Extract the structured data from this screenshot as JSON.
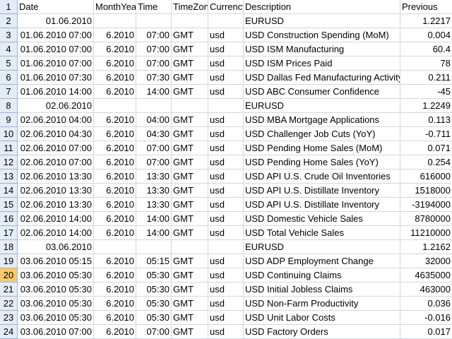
{
  "columns": [
    "Date",
    "MonthYear",
    "Time",
    "TimeZone",
    "Currency",
    "Description",
    "Previous"
  ],
  "selected_row": 20,
  "rows": [
    {
      "n": "2",
      "date": "01.06.2010",
      "my": "",
      "time": "",
      "tz": "",
      "cur": "",
      "desc": "EURUSD",
      "prev": "1.2217"
    },
    {
      "n": "3",
      "date": "01.06.2010 07:00",
      "my": "6.2010",
      "time": "07:00",
      "tz": "GMT",
      "cur": "usd",
      "desc": "USD Construction Spending (MoM)",
      "prev": "0.004"
    },
    {
      "n": "4",
      "date": "01.06.2010 07:00",
      "my": "6.2010",
      "time": "07:00",
      "tz": "GMT",
      "cur": "usd",
      "desc": "USD ISM Manufacturing",
      "prev": "60.4"
    },
    {
      "n": "5",
      "date": "01.06.2010 07:00",
      "my": "6.2010",
      "time": "07:00",
      "tz": "GMT",
      "cur": "usd",
      "desc": "USD ISM Prices Paid",
      "prev": "78"
    },
    {
      "n": "6",
      "date": "01.06.2010 07:30",
      "my": "6.2010",
      "time": "07:30",
      "tz": "GMT",
      "cur": "usd",
      "desc": "USD Dallas Fed Manufacturing Activity",
      "prev": "0.211"
    },
    {
      "n": "7",
      "date": "01.06.2010 14:00",
      "my": "6.2010",
      "time": "14:00",
      "tz": "GMT",
      "cur": "usd",
      "desc": "USD ABC Consumer Confidence",
      "prev": "-45"
    },
    {
      "n": "8",
      "date": "02.06.2010",
      "my": "",
      "time": "",
      "tz": "",
      "cur": "",
      "desc": "EURUSD",
      "prev": "1.2249"
    },
    {
      "n": "9",
      "date": "02.06.2010 04:00",
      "my": "6.2010",
      "time": "04:00",
      "tz": "GMT",
      "cur": "usd",
      "desc": "USD MBA Mortgage Applications",
      "prev": "0.113"
    },
    {
      "n": "10",
      "date": "02.06.2010 04:30",
      "my": "6.2010",
      "time": "04:30",
      "tz": "GMT",
      "cur": "usd",
      "desc": "USD Challenger Job Cuts (YoY)",
      "prev": "-0.711"
    },
    {
      "n": "11",
      "date": "02.06.2010 07:00",
      "my": "6.2010",
      "time": "07:00",
      "tz": "GMT",
      "cur": "usd",
      "desc": "USD Pending Home Sales (MoM)",
      "prev": "0.071"
    },
    {
      "n": "12",
      "date": "02.06.2010 07:00",
      "my": "6.2010",
      "time": "07:00",
      "tz": "GMT",
      "cur": "usd",
      "desc": "USD Pending Home Sales (YoY)",
      "prev": "0.254"
    },
    {
      "n": "13",
      "date": "02.06.2010 13:30",
      "my": "6.2010",
      "time": "13:30",
      "tz": "GMT",
      "cur": "usd",
      "desc": "USD API U.S. Crude Oil Inventories",
      "prev": "616000"
    },
    {
      "n": "14",
      "date": "02.06.2010 13:30",
      "my": "6.2010",
      "time": "13:30",
      "tz": "GMT",
      "cur": "usd",
      "desc": "USD API U.S. Distillate Inventory",
      "prev": "1518000"
    },
    {
      "n": "15",
      "date": "02.06.2010 13:30",
      "my": "6.2010",
      "time": "13:30",
      "tz": "GMT",
      "cur": "usd",
      "desc": "USD API U.S. Distillate Inventory",
      "prev": "-3194000"
    },
    {
      "n": "16",
      "date": "02.06.2010 14:00",
      "my": "6.2010",
      "time": "14:00",
      "tz": "GMT",
      "cur": "usd",
      "desc": "USD Domestic Vehicle Sales",
      "prev": "8780000"
    },
    {
      "n": "17",
      "date": "02.06.2010 14:00",
      "my": "6.2010",
      "time": "14:00",
      "tz": "GMT",
      "cur": "usd",
      "desc": "USD Total Vehicle Sales",
      "prev": "11210000"
    },
    {
      "n": "18",
      "date": "03.06.2010",
      "my": "",
      "time": "",
      "tz": "",
      "cur": "",
      "desc": "EURUSD",
      "prev": "1.2162"
    },
    {
      "n": "19",
      "date": "03.06.2010 05:15",
      "my": "6.2010",
      "time": "05:15",
      "tz": "GMT",
      "cur": "usd",
      "desc": "USD ADP Employment Change",
      "prev": "32000"
    },
    {
      "n": "20",
      "date": "03.06.2010 05:30",
      "my": "6.2010",
      "time": "05:30",
      "tz": "GMT",
      "cur": "usd",
      "desc": "USD Continuing Claims",
      "prev": "4635000"
    },
    {
      "n": "21",
      "date": "03.06.2010 05:30",
      "my": "6.2010",
      "time": "05:30",
      "tz": "GMT",
      "cur": "usd",
      "desc": "USD Initial Jobless Claims",
      "prev": "463000"
    },
    {
      "n": "22",
      "date": "03.06.2010 05:30",
      "my": "6.2010",
      "time": "05:30",
      "tz": "GMT",
      "cur": "usd",
      "desc": "USD Non-Farm Productivity",
      "prev": "0.036"
    },
    {
      "n": "23",
      "date": "03.06.2010 05:30",
      "my": "6.2010",
      "time": "05:30",
      "tz": "GMT",
      "cur": "usd",
      "desc": "USD Unit Labor Costs",
      "prev": "-0.016"
    },
    {
      "n": "24",
      "date": "03.06.2010 07:00",
      "my": "6.2010",
      "time": "07:00",
      "tz": "GMT",
      "cur": "usd",
      "desc": "USD Factory Orders",
      "prev": "0.017"
    }
  ]
}
